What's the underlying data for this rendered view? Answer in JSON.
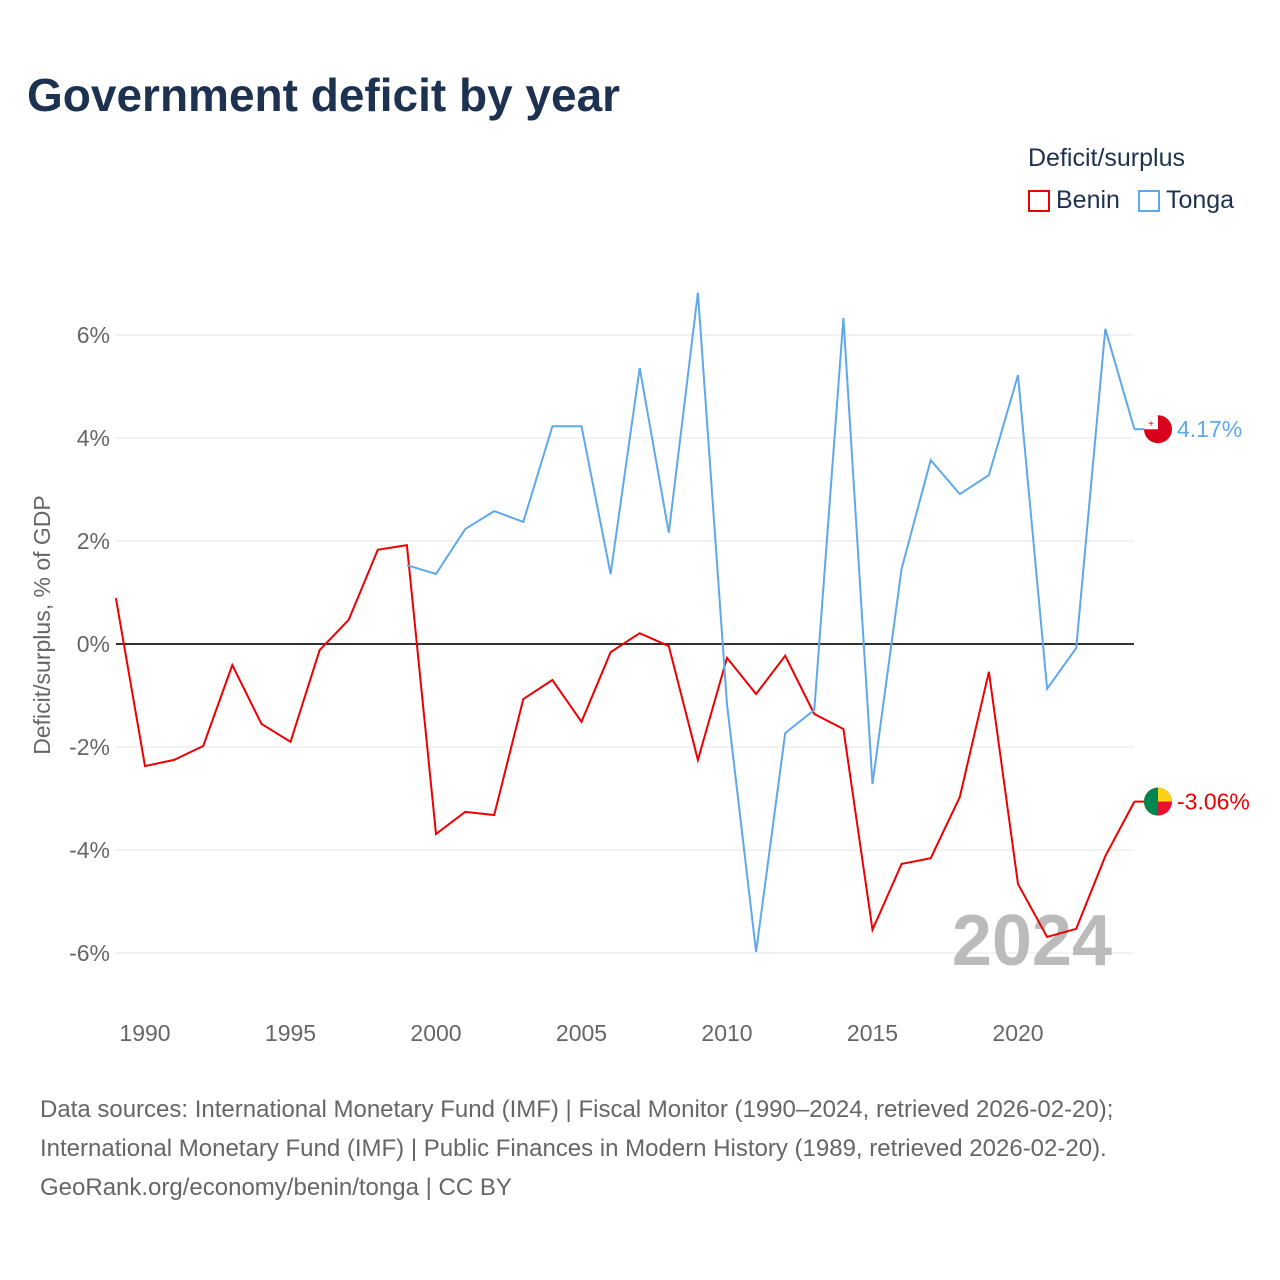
{
  "title": "Government deficit by year",
  "legend": {
    "title": "Deficit/surplus",
    "items": [
      {
        "label": "Benin",
        "color": "#ee0000"
      },
      {
        "label": "Tonga",
        "color": "#5ea8ec"
      }
    ]
  },
  "footer": [
    "Data sources: International Monetary Fund (IMF) | Fiscal Monitor (1990–2024, retrieved 2026-02-20);",
    "International Monetary Fund (IMF) | Public Finances in Modern History (1989, retrieved 2026-02-20).",
    "GeoRank.org/economy/benin/tonga | CC BY"
  ],
  "chart_data": {
    "type": "line",
    "title": "Government deficit by year",
    "ylabel": "Deficit/surplus, % of GDP",
    "xlim": [
      1989,
      2024
    ],
    "ylim": [
      -7,
      7
    ],
    "xticks": [
      1990,
      1995,
      2000,
      2005,
      2010,
      2015,
      2020
    ],
    "yticks": [
      {
        "v": 6,
        "label": "6%"
      },
      {
        "v": 4,
        "label": "4%"
      },
      {
        "v": 2,
        "label": "2%"
      },
      {
        "v": 0,
        "label": "0%"
      },
      {
        "v": -2,
        "label": "-2%"
      },
      {
        "v": -4,
        "label": "-4%"
      },
      {
        "v": -6,
        "label": "-6%"
      }
    ],
    "year_watermark": "2024",
    "series": [
      {
        "name": "Benin",
        "color": "#ee0000",
        "end_label": "-3.06%",
        "start": 1989,
        "values": [
          0.89,
          -2.37,
          -2.25,
          -1.98,
          -0.41,
          -1.55,
          -1.9,
          -0.12,
          0.47,
          1.83,
          1.92,
          -3.69,
          -3.26,
          -3.32,
          -1.07,
          -0.7,
          -1.51,
          -0.16,
          0.21,
          -0.04,
          -2.25,
          -0.27,
          -0.97,
          -0.23,
          -1.36,
          -1.65,
          -5.55,
          -4.27,
          -4.16,
          -2.97,
          -0.54,
          -4.66,
          -5.69,
          -5.53,
          -4.12,
          -3.06
        ]
      },
      {
        "name": "Tonga",
        "color": "#5ea8ec",
        "end_label": "4.17%",
        "start": 1999,
        "values": [
          1.53,
          1.36,
          2.23,
          2.58,
          2.37,
          4.23,
          4.23,
          1.36,
          5.36,
          2.16,
          6.82,
          -1.17,
          -5.98,
          -1.73,
          -1.28,
          6.33,
          -2.72,
          1.46,
          3.57,
          2.91,
          3.28,
          5.22,
          -0.87,
          -0.08,
          6.12,
          4.17
        ]
      }
    ]
  }
}
